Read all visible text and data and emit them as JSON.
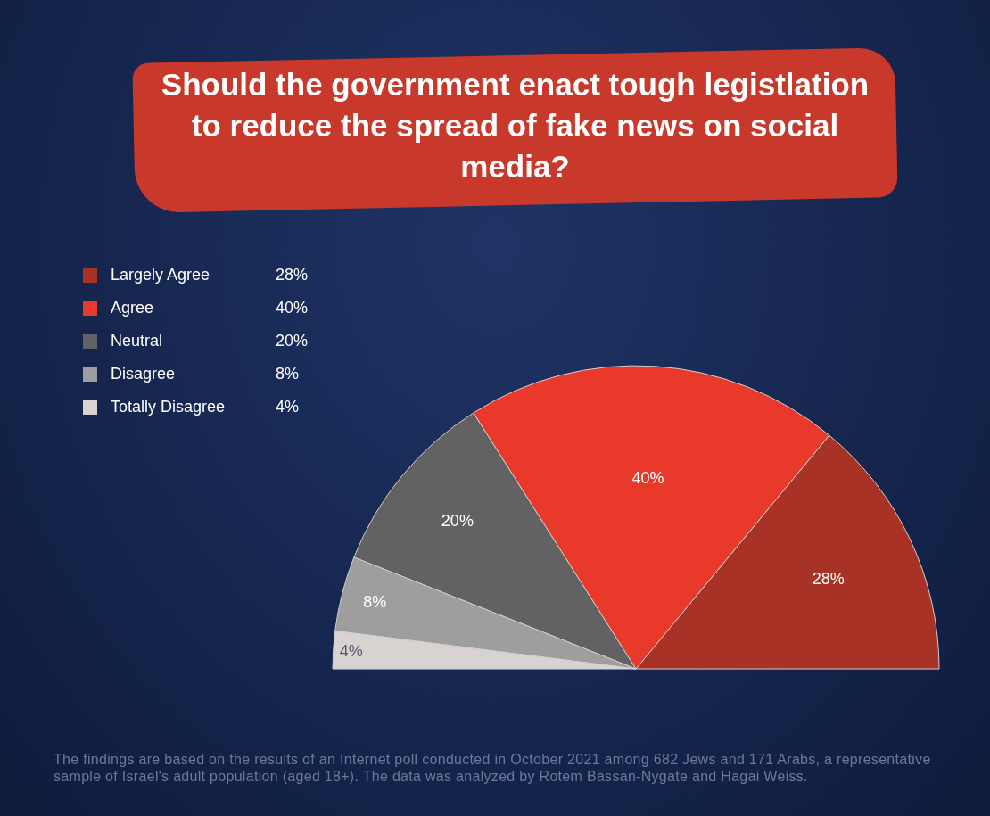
{
  "chart_data": {
    "type": "pie",
    "title": "Should the government enact tough legistlation to reduce the spread of fake news on social media?",
    "categories": [
      "Largely Agree",
      "Agree",
      "Neutral",
      "Disagree",
      "Totally Disagree"
    ],
    "values": [
      28,
      40,
      20,
      8,
      4
    ],
    "value_labels": [
      "28%",
      "40%",
      "20%",
      "8%",
      "4%"
    ],
    "colors": [
      "#a93226",
      "#e8392a",
      "#626262",
      "#9e9e9e",
      "#d8d3d1"
    ],
    "legend": "top left",
    "annotations": [
      "The findings are based on the results of an Internet poll conducted in October 2021 among 682 Jews and 171 Arabs, a representative sample of Israel's adult population (aged 18+). The data was analyzed by Rotem Bassan-Nygate and Hagai Weiss."
    ]
  }
}
